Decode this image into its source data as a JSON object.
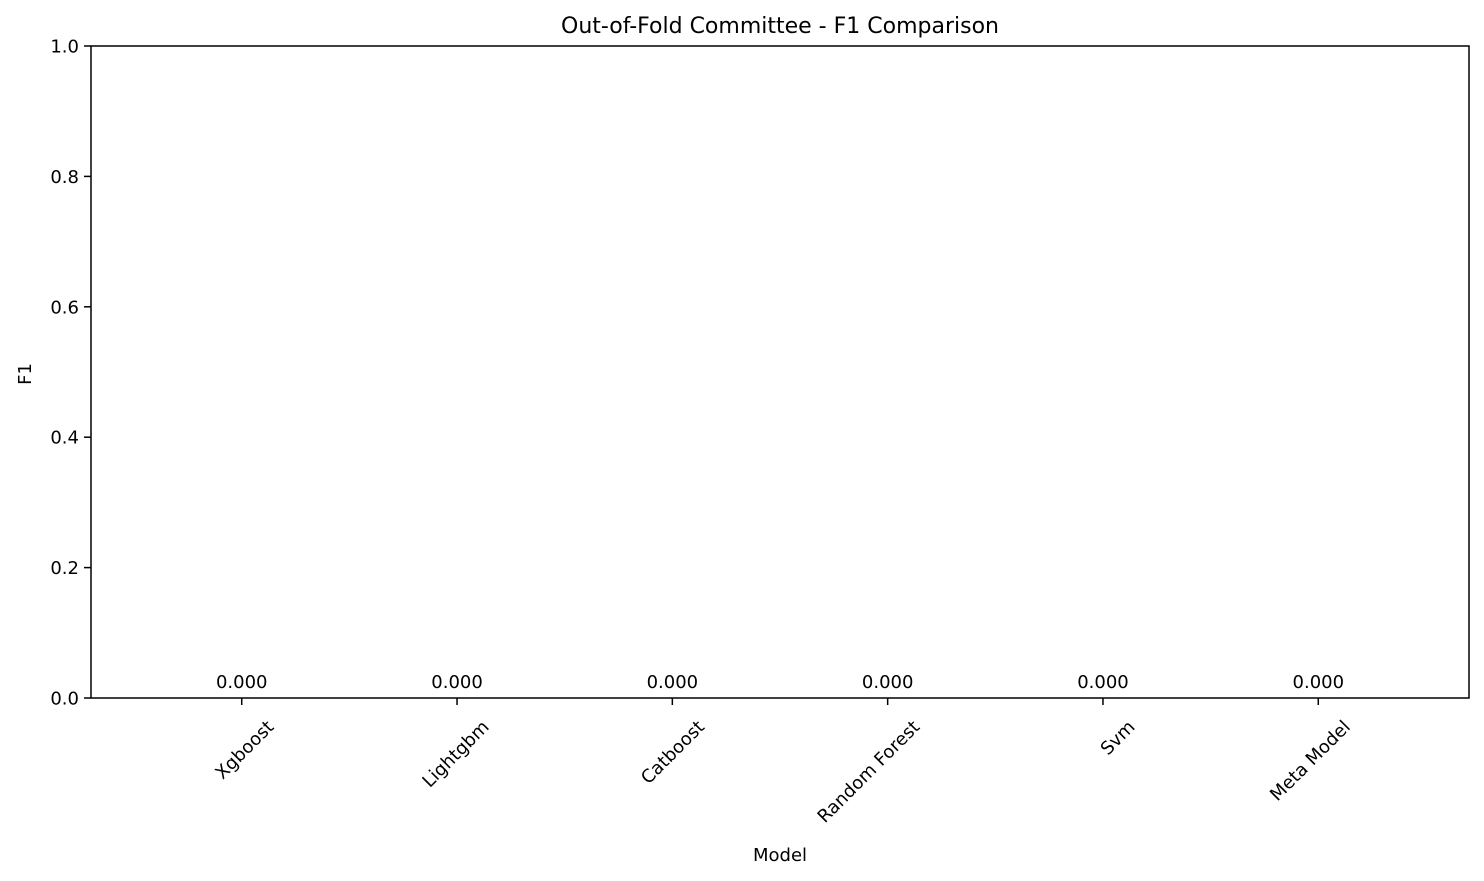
{
  "chart_data": {
    "type": "bar",
    "title": "Out-of-Fold Committee - F1 Comparison",
    "xlabel": "Model",
    "ylabel": "F1",
    "categories": [
      "Xgboost",
      "Lightgbm",
      "Catboost",
      "Random Forest",
      "Svm",
      "Meta Model"
    ],
    "values": [
      0.0,
      0.0,
      0.0,
      0.0,
      0.0,
      0.0
    ],
    "value_labels": [
      "0.000",
      "0.000",
      "0.000",
      "0.000",
      "0.000",
      "0.000"
    ],
    "ylim": [
      0,
      1.0
    ],
    "yticks": [
      0.0,
      0.2,
      0.4,
      0.6,
      0.8,
      1.0
    ],
    "ytick_labels": [
      "0.0",
      "0.2",
      "0.4",
      "0.6",
      "0.8",
      "1.0"
    ],
    "grid": false,
    "legend": "none",
    "bar_color": "#1f77b4"
  }
}
